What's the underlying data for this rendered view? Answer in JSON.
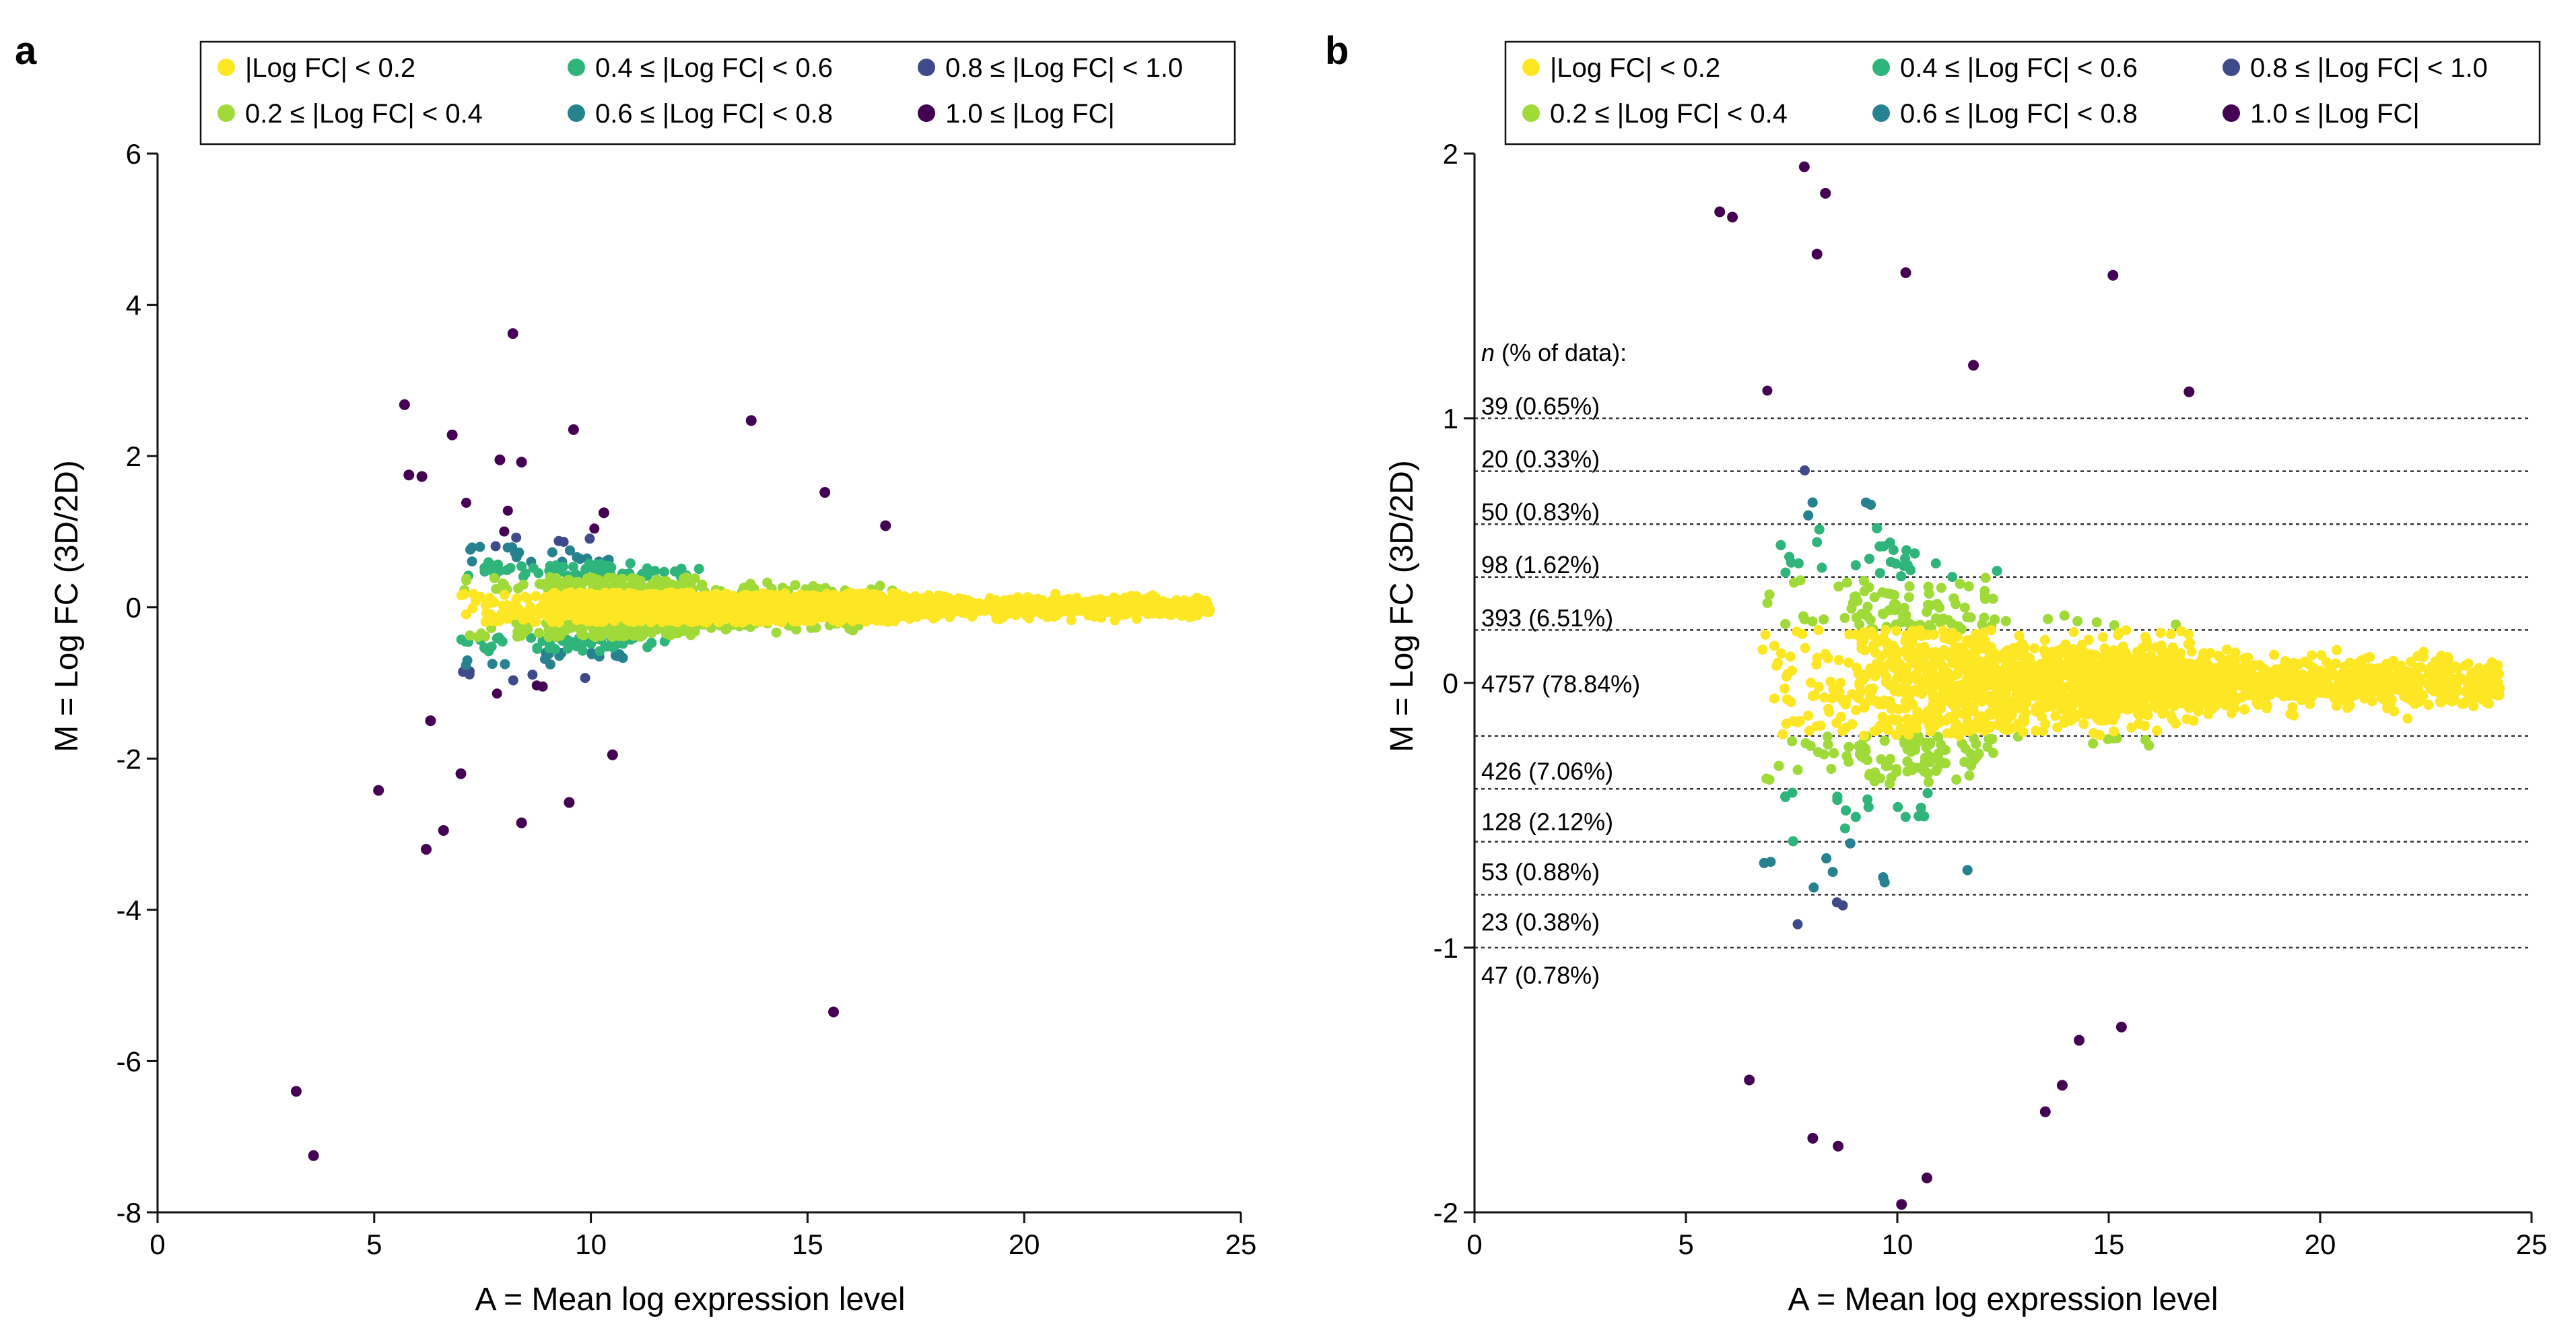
{
  "figure": {
    "legend_colors": {
      "c1": "#fde725",
      "c2": "#a0da39",
      "c3": "#2fb47c",
      "c4": "#26828e",
      "c5": "#3e4a89",
      "c6": "#440154"
    }
  },
  "chart_data": [
    {
      "panel": "a",
      "type": "scatter",
      "title": "",
      "xlabel": "A = Mean log expression level",
      "ylabel": "M = Log FC (3D/2D)",
      "xlim": [
        0,
        25
      ],
      "ylim": [
        -8,
        6
      ],
      "xticks": [
        "0",
        "5",
        "10",
        "15",
        "20",
        "25"
      ],
      "yticks": [
        "6",
        "4",
        "2",
        "0",
        "-2",
        "-4",
        "-6",
        "-8"
      ],
      "grid": false,
      "legend_position": "top",
      "legend": [
        {
          "key": "c1",
          "label": "|Log FC| < 0.2"
        },
        {
          "key": "c3",
          "label": "0.4 ≤ |Log FC| < 0.6"
        },
        {
          "key": "c5",
          "label": "0.8 ≤ |Log FC| < 1.0"
        },
        {
          "key": "c2",
          "label": "0.2 ≤ |Log FC| < 0.4"
        },
        {
          "key": "c4",
          "label": "0.6 ≤ |Log FC| < 0.8"
        },
        {
          "key": "c6",
          "label": "1.0 ≤ |Log FC|"
        }
      ],
      "bulk_x_range": [
        7.0,
        24.3
      ],
      "highlighted_points": [
        {
          "x": 8.2,
          "y": 3.62
        },
        {
          "x": 5.7,
          "y": 2.68
        },
        {
          "x": 6.8,
          "y": 2.28
        },
        {
          "x": 9.6,
          "y": 2.35
        },
        {
          "x": 13.7,
          "y": 2.47
        },
        {
          "x": 5.8,
          "y": 1.75
        },
        {
          "x": 6.1,
          "y": 1.73
        },
        {
          "x": 15.4,
          "y": 1.52
        },
        {
          "x": 16.8,
          "y": 1.08
        },
        {
          "x": 7.9,
          "y": 1.95
        },
        {
          "x": 8.4,
          "y": 1.92
        },
        {
          "x": 10.3,
          "y": 1.25
        },
        {
          "x": 5.1,
          "y": -2.42
        },
        {
          "x": 6.2,
          "y": -3.2
        },
        {
          "x": 6.6,
          "y": -2.95
        },
        {
          "x": 8.4,
          "y": -2.85
        },
        {
          "x": 9.5,
          "y": -2.58
        },
        {
          "x": 15.6,
          "y": -5.35
        },
        {
          "x": 3.2,
          "y": -6.4
        },
        {
          "x": 3.6,
          "y": -7.25
        },
        {
          "x": 6.3,
          "y": -1.5
        },
        {
          "x": 7.0,
          "y": -2.2
        },
        {
          "x": 10.5,
          "y": -1.95
        }
      ]
    },
    {
      "panel": "b",
      "type": "scatter",
      "title": "",
      "xlabel": "A = Mean log expression level",
      "ylabel": "M = Log FC (3D/2D)",
      "xlim": [
        0,
        25
      ],
      "ylim": [
        -2,
        2
      ],
      "xticks": [
        "0",
        "5",
        "10",
        "15",
        "20",
        "25"
      ],
      "yticks": [
        "2",
        "1",
        "0",
        "-1",
        "-2"
      ],
      "grid": false,
      "legend_position": "top",
      "legend": [
        {
          "key": "c1",
          "label": "|Log FC| < 0.2"
        },
        {
          "key": "c3",
          "label": "0.4 ≤ |Log FC| < 0.6"
        },
        {
          "key": "c5",
          "label": "0.8 ≤ |Log FC| < 1.0"
        },
        {
          "key": "c2",
          "label": "0.2 ≤ |Log FC| < 0.4"
        },
        {
          "key": "c4",
          "label": "0.6 ≤ |Log FC| < 0.8"
        },
        {
          "key": "c6",
          "label": "1.0 ≤ |Log FC|"
        }
      ],
      "thresholds": [
        1.0,
        0.8,
        0.6,
        0.4,
        0.2,
        -0.2,
        -0.4,
        -0.6,
        -0.8,
        -1.0
      ],
      "annotation_header_prefix": "n",
      "annotation_header_rest": " (% of data):",
      "bins": [
        {
          "label": "39 (0.65%)",
          "y": 1.05
        },
        {
          "label": "20 (0.33%)",
          "y": 0.85
        },
        {
          "label": "50 (0.83%)",
          "y": 0.65
        },
        {
          "label": "98 (1.62%)",
          "y": 0.45
        },
        {
          "label": "393 (6.51%)",
          "y": 0.25
        },
        {
          "label": "4757 (78.84%)",
          "y": 0.0
        },
        {
          "label": "426 (7.06%)",
          "y": -0.33
        },
        {
          "label": "128 (2.12%)",
          "y": -0.52
        },
        {
          "label": "53 (0.88%)",
          "y": -0.71
        },
        {
          "label": "23 (0.38%)",
          "y": -0.9
        },
        {
          "label": "47 (0.78%)",
          "y": -1.1
        }
      ],
      "bulk_x_range": [
        6.8,
        24.3
      ],
      "highlighted_points": [
        {
          "x": 7.8,
          "y": 1.95
        },
        {
          "x": 8.3,
          "y": 1.85
        },
        {
          "x": 5.8,
          "y": 1.78
        },
        {
          "x": 6.1,
          "y": 1.76
        },
        {
          "x": 8.1,
          "y": 1.62
        },
        {
          "x": 10.2,
          "y": 1.55
        },
        {
          "x": 15.1,
          "y": 1.54
        },
        {
          "x": 16.9,
          "y": 1.1
        },
        {
          "x": 11.8,
          "y": 1.2
        },
        {
          "x": 8.0,
          "y": -1.72
        },
        {
          "x": 8.6,
          "y": -1.75
        },
        {
          "x": 10.1,
          "y": -1.97
        },
        {
          "x": 10.7,
          "y": -1.87
        },
        {
          "x": 13.9,
          "y": -1.52
        },
        {
          "x": 15.3,
          "y": -1.3
        },
        {
          "x": 13.5,
          "y": -1.62
        },
        {
          "x": 6.5,
          "y": -1.5
        },
        {
          "x": 14.3,
          "y": -1.35
        }
      ]
    }
  ]
}
